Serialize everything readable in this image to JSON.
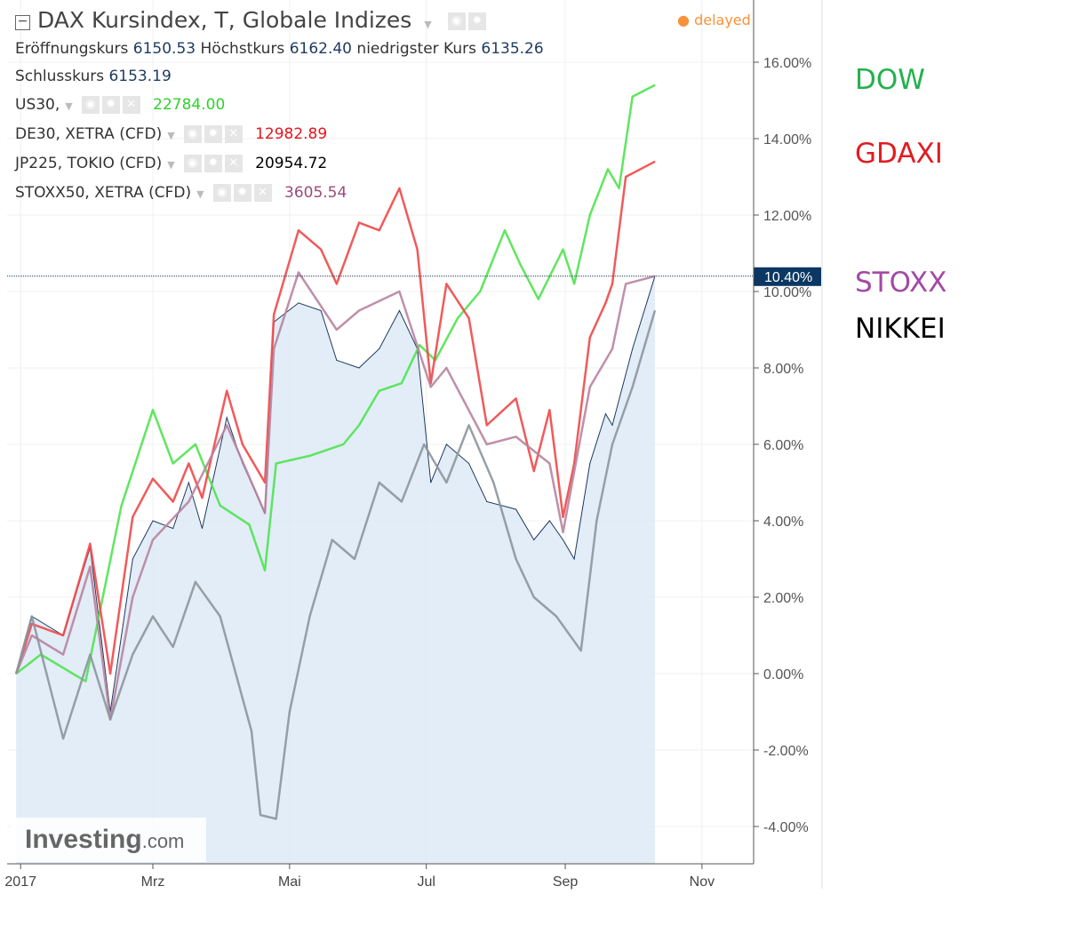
{
  "header": {
    "title": "DAX Kursindex, T, Globale Indizes",
    "status": "delayed",
    "ohlc": [
      {
        "label": "Eröffnungskurs",
        "value": "6150.53"
      },
      {
        "label": "Höchstkurs",
        "value": "6162.40"
      },
      {
        "label": "niedrigster Kurs",
        "value": "6135.26"
      },
      {
        "label": "Schlusskurs",
        "value": "6153.19"
      }
    ]
  },
  "overlays": [
    {
      "name": "US30,",
      "value": "22784.00",
      "color": "#2fd12f"
    },
    {
      "name": "DE30, XETRA (CFD)",
      "value": "12982.89",
      "color": "#e8141b"
    },
    {
      "name": "JP225, TOKIO (CFD)",
      "value": "20954.72",
      "color": "#000000"
    },
    {
      "name": "STOXX50, XETRA (CFD)",
      "value": "3605.54",
      "color": "#9b4b7c"
    }
  ],
  "annotations": [
    {
      "text": "DOW",
      "color": "#22b14c"
    },
    {
      "text": "GDAXI",
      "color": "#e11b22"
    },
    {
      "text": "STOXX",
      "color": "#a349a4"
    },
    {
      "text": "NIKKEI",
      "color": "#000000"
    }
  ],
  "logo": {
    "main": "Investing",
    "suffix": ".com"
  },
  "chart_data": {
    "type": "line",
    "x_ticks": [
      {
        "date": "2017-01-01",
        "label": "2017"
      },
      {
        "date": "2017-03-01",
        "label": "Mrz"
      },
      {
        "date": "2017-05-01",
        "label": "Mai"
      },
      {
        "date": "2017-07-01",
        "label": "Jul"
      },
      {
        "date": "2017-09-01",
        "label": "Sep"
      },
      {
        "date": "2017-11-01",
        "label": "Nov"
      }
    ],
    "y_ticks": [
      "-4.00%",
      "-2.00%",
      "0.00%",
      "2.00%",
      "4.00%",
      "6.00%",
      "8.00%",
      "10.00%",
      "12.00%",
      "14.00%",
      "16.00%"
    ],
    "ylim": [
      -5,
      17
    ],
    "y_unit": "%",
    "grid": true,
    "last_value_label": "10.40%",
    "last_value": 10.4,
    "series": [
      {
        "name": "DAX Kursindex",
        "style": "area",
        "color": "#1e3a5f",
        "fill": "#dbe8f6",
        "points": [
          [
            "2016-12-30",
            0
          ],
          [
            "2017-01-06",
            1.5
          ],
          [
            "2017-01-20",
            1
          ],
          [
            "2017-02-01",
            3.3
          ],
          [
            "2017-02-10",
            -1
          ],
          [
            "2017-02-20",
            3
          ],
          [
            "2017-03-01",
            4
          ],
          [
            "2017-03-10",
            3.8
          ],
          [
            "2017-03-17",
            5
          ],
          [
            "2017-03-23",
            3.8
          ],
          [
            "2017-04-03",
            6.7
          ],
          [
            "2017-04-10",
            5.5
          ],
          [
            "2017-04-20",
            4.2
          ],
          [
            "2017-04-24",
            9.2
          ],
          [
            "2017-05-05",
            9.7
          ],
          [
            "2017-05-15",
            9.5
          ],
          [
            "2017-05-22",
            8.2
          ],
          [
            "2017-06-01",
            8
          ],
          [
            "2017-06-10",
            8.5
          ],
          [
            "2017-06-19",
            9.5
          ],
          [
            "2017-06-27",
            8.5
          ],
          [
            "2017-07-03",
            5
          ],
          [
            "2017-07-10",
            6
          ],
          [
            "2017-07-20",
            5.5
          ],
          [
            "2017-07-28",
            4.5
          ],
          [
            "2017-08-10",
            4.3
          ],
          [
            "2017-08-18",
            3.5
          ],
          [
            "2017-08-25",
            4
          ],
          [
            "2017-08-31",
            3.5
          ],
          [
            "2017-09-05",
            3
          ],
          [
            "2017-09-12",
            5.5
          ],
          [
            "2017-09-19",
            6.8
          ],
          [
            "2017-09-22",
            6.5
          ],
          [
            "2017-10-01",
            8.5
          ],
          [
            "2017-10-11",
            10.4
          ]
        ]
      },
      {
        "name": "US30,",
        "color": "#4fe34f",
        "points": [
          [
            "2016-12-30",
            0
          ],
          [
            "2017-01-10",
            0.5
          ],
          [
            "2017-01-30",
            -0.2
          ],
          [
            "2017-02-15",
            4.4
          ],
          [
            "2017-03-01",
            6.9
          ],
          [
            "2017-03-10",
            5.5
          ],
          [
            "2017-03-20",
            6
          ],
          [
            "2017-03-31",
            4.4
          ],
          [
            "2017-04-13",
            3.9
          ],
          [
            "2017-04-20",
            2.7
          ],
          [
            "2017-04-25",
            5.5
          ],
          [
            "2017-05-10",
            5.7
          ],
          [
            "2017-05-25",
            6
          ],
          [
            "2017-06-01",
            6.5
          ],
          [
            "2017-06-10",
            7.4
          ],
          [
            "2017-06-20",
            7.6
          ],
          [
            "2017-06-28",
            8.6
          ],
          [
            "2017-07-05",
            8.2
          ],
          [
            "2017-07-15",
            9.3
          ],
          [
            "2017-07-25",
            10
          ],
          [
            "2017-08-05",
            11.6
          ],
          [
            "2017-08-12",
            10.7
          ],
          [
            "2017-08-20",
            9.8
          ],
          [
            "2017-08-31",
            11.1
          ],
          [
            "2017-09-05",
            10.2
          ],
          [
            "2017-09-12",
            12
          ],
          [
            "2017-09-20",
            13.2
          ],
          [
            "2017-09-25",
            12.7
          ],
          [
            "2017-10-01",
            15.1
          ],
          [
            "2017-10-11",
            15.4
          ]
        ]
      },
      {
        "name": "DE30, XETRA (CFD)",
        "color": "#f04848",
        "points": [
          [
            "2016-12-30",
            0
          ],
          [
            "2017-01-06",
            1.3
          ],
          [
            "2017-01-20",
            1
          ],
          [
            "2017-02-01",
            3.4
          ],
          [
            "2017-02-10",
            0
          ],
          [
            "2017-02-20",
            4.1
          ],
          [
            "2017-03-01",
            5.1
          ],
          [
            "2017-03-10",
            4.5
          ],
          [
            "2017-03-17",
            5.5
          ],
          [
            "2017-03-23",
            4.6
          ],
          [
            "2017-04-03",
            7.4
          ],
          [
            "2017-04-10",
            6
          ],
          [
            "2017-04-20",
            5
          ],
          [
            "2017-04-24",
            9.4
          ],
          [
            "2017-05-05",
            11.6
          ],
          [
            "2017-05-15",
            11.1
          ],
          [
            "2017-05-22",
            10.2
          ],
          [
            "2017-06-01",
            11.8
          ],
          [
            "2017-06-10",
            11.6
          ],
          [
            "2017-06-19",
            12.7
          ],
          [
            "2017-06-27",
            11.1
          ],
          [
            "2017-07-03",
            7.6
          ],
          [
            "2017-07-10",
            10.2
          ],
          [
            "2017-07-20",
            9.3
          ],
          [
            "2017-07-28",
            6.5
          ],
          [
            "2017-08-10",
            7.2
          ],
          [
            "2017-08-18",
            5.3
          ],
          [
            "2017-08-25",
            6.9
          ],
          [
            "2017-08-31",
            4.1
          ],
          [
            "2017-09-05",
            5.5
          ],
          [
            "2017-09-12",
            8.8
          ],
          [
            "2017-09-19",
            9.7
          ],
          [
            "2017-09-22",
            10.2
          ],
          [
            "2017-09-28",
            13
          ],
          [
            "2017-10-11",
            13.4
          ]
        ]
      },
      {
        "name": "STOXX50, XETRA (CFD)",
        "color": "#b8849f",
        "points": [
          [
            "2016-12-30",
            0
          ],
          [
            "2017-01-06",
            1
          ],
          [
            "2017-01-20",
            0.5
          ],
          [
            "2017-02-01",
            2.8
          ],
          [
            "2017-02-10",
            -1.2
          ],
          [
            "2017-02-20",
            2
          ],
          [
            "2017-03-01",
            3.5
          ],
          [
            "2017-03-17",
            4.5
          ],
          [
            "2017-04-03",
            6.5
          ],
          [
            "2017-04-20",
            4.2
          ],
          [
            "2017-04-24",
            8.5
          ],
          [
            "2017-05-05",
            10.5
          ],
          [
            "2017-05-22",
            9
          ],
          [
            "2017-06-01",
            9.5
          ],
          [
            "2017-06-19",
            10
          ],
          [
            "2017-07-03",
            7.5
          ],
          [
            "2017-07-10",
            8
          ],
          [
            "2017-07-28",
            6
          ],
          [
            "2017-08-10",
            6.2
          ],
          [
            "2017-08-25",
            5.5
          ],
          [
            "2017-08-31",
            3.7
          ],
          [
            "2017-09-12",
            7.5
          ],
          [
            "2017-09-22",
            8.5
          ],
          [
            "2017-09-28",
            10.2
          ],
          [
            "2017-10-11",
            10.4
          ]
        ]
      },
      {
        "name": "JP225, TOKIO (CFD)",
        "color": "#8e959c",
        "points": [
          [
            "2016-12-30",
            0
          ],
          [
            "2017-01-06",
            1.5
          ],
          [
            "2017-01-20",
            -1.7
          ],
          [
            "2017-02-01",
            0.5
          ],
          [
            "2017-02-10",
            -1.2
          ],
          [
            "2017-02-20",
            0.5
          ],
          [
            "2017-03-01",
            1.5
          ],
          [
            "2017-03-10",
            0.7
          ],
          [
            "2017-03-20",
            2.4
          ],
          [
            "2017-03-31",
            1.5
          ],
          [
            "2017-04-14",
            -1.5
          ],
          [
            "2017-04-18",
            -3.7
          ],
          [
            "2017-04-25",
            -3.8
          ],
          [
            "2017-05-01",
            -1
          ],
          [
            "2017-05-10",
            1.5
          ],
          [
            "2017-05-20",
            3.5
          ],
          [
            "2017-05-30",
            3
          ],
          [
            "2017-06-10",
            5
          ],
          [
            "2017-06-20",
            4.5
          ],
          [
            "2017-06-30",
            6
          ],
          [
            "2017-07-10",
            5
          ],
          [
            "2017-07-20",
            6.5
          ],
          [
            "2017-07-31",
            5
          ],
          [
            "2017-08-10",
            3
          ],
          [
            "2017-08-18",
            2
          ],
          [
            "2017-08-28",
            1.5
          ],
          [
            "2017-09-08",
            0.6
          ],
          [
            "2017-09-15",
            4
          ],
          [
            "2017-09-22",
            6
          ],
          [
            "2017-10-01",
            7.5
          ],
          [
            "2017-10-11",
            9.5
          ]
        ]
      }
    ]
  }
}
